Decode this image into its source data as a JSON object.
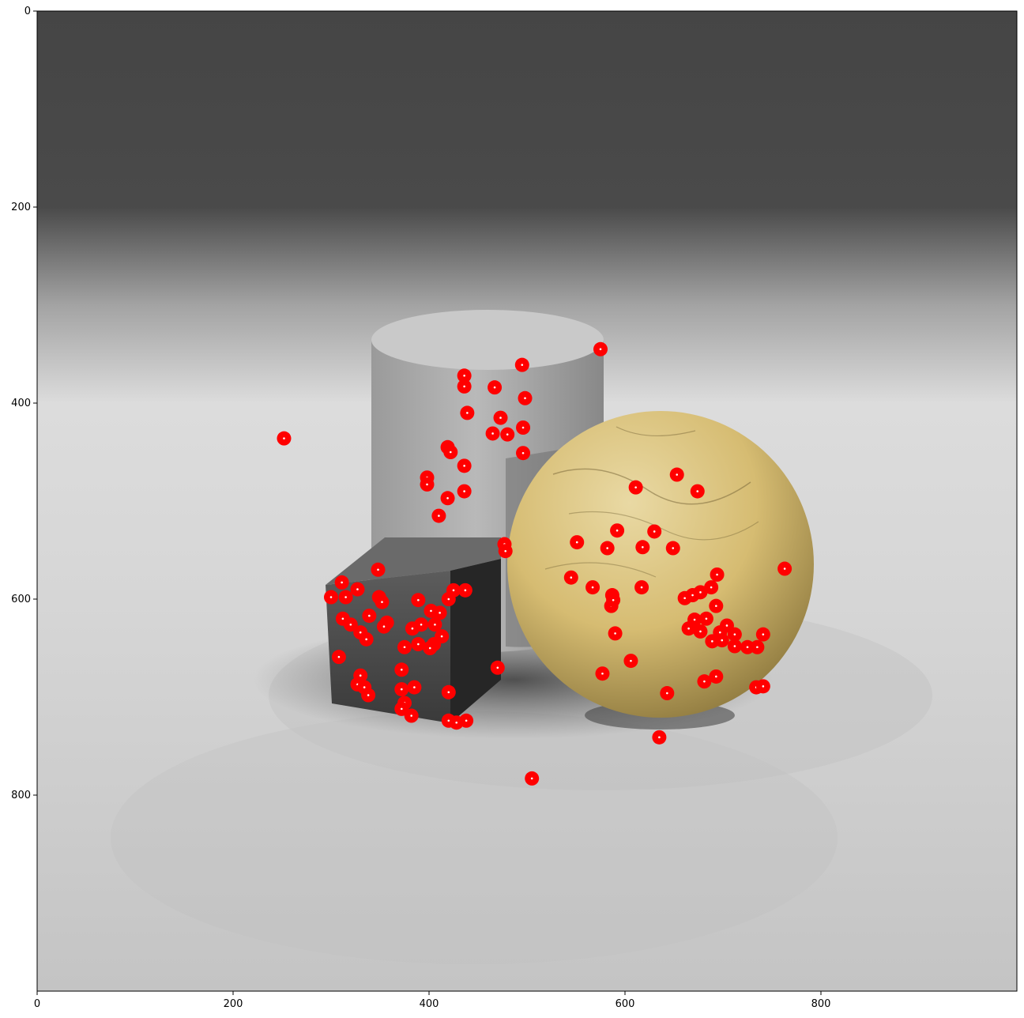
{
  "chart_data": {
    "type": "scatter",
    "title": "",
    "xlabel": "",
    "ylabel": "",
    "xlim": [
      0,
      1000
    ],
    "ylim": [
      1000,
      0
    ],
    "y_axis_inverted": true,
    "grid": false,
    "background": "rendered 3D scene: gray gradient backdrop with a stone cylinder, a dark granite cube and a yellow cracked sphere",
    "xticks": [
      0,
      200,
      400,
      600,
      800
    ],
    "yticks": [
      0,
      200,
      400,
      600,
      800
    ],
    "x_tick_labels": [
      "0",
      "200",
      "400",
      "600",
      "800"
    ],
    "y_tick_labels": [
      "0",
      "200",
      "400",
      "600",
      "800"
    ],
    "marker": {
      "shape": "circle",
      "color": "#ff0000",
      "center_color": "#ffffff"
    },
    "points": [
      [
        575,
        345
      ],
      [
        495,
        361
      ],
      [
        436,
        372
      ],
      [
        436,
        383
      ],
      [
        467,
        384
      ],
      [
        498,
        395
      ],
      [
        439,
        410
      ],
      [
        473,
        415
      ],
      [
        496,
        425
      ],
      [
        465,
        431
      ],
      [
        480,
        432
      ],
      [
        252,
        436
      ],
      [
        419,
        445
      ],
      [
        422,
        450
      ],
      [
        496,
        451
      ],
      [
        436,
        464
      ],
      [
        398,
        476
      ],
      [
        398,
        483
      ],
      [
        611,
        486
      ],
      [
        653,
        473
      ],
      [
        674,
        490
      ],
      [
        436,
        490
      ],
      [
        419,
        497
      ],
      [
        410,
        515
      ],
      [
        592,
        530
      ],
      [
        630,
        531
      ],
      [
        477,
        544
      ],
      [
        478,
        551
      ],
      [
        551,
        542
      ],
      [
        582,
        548
      ],
      [
        618,
        547
      ],
      [
        649,
        548
      ],
      [
        348,
        570
      ],
      [
        763,
        569
      ],
      [
        545,
        578
      ],
      [
        694,
        575
      ],
      [
        567,
        588
      ],
      [
        617,
        588
      ],
      [
        688,
        588
      ],
      [
        677,
        593
      ],
      [
        587,
        596
      ],
      [
        669,
        596
      ],
      [
        661,
        599
      ],
      [
        425,
        591
      ],
      [
        437,
        591
      ],
      [
        311,
        583
      ],
      [
        327,
        590
      ],
      [
        300,
        598
      ],
      [
        315,
        598
      ],
      [
        349,
        598
      ],
      [
        352,
        603
      ],
      [
        389,
        601
      ],
      [
        420,
        600
      ],
      [
        693,
        607
      ],
      [
        586,
        607
      ],
      [
        588,
        601
      ],
      [
        402,
        612
      ],
      [
        411,
        614
      ],
      [
        339,
        617
      ],
      [
        312,
        620
      ],
      [
        320,
        626
      ],
      [
        357,
        624
      ],
      [
        354,
        628
      ],
      [
        671,
        621
      ],
      [
        683,
        620
      ],
      [
        665,
        630
      ],
      [
        677,
        633
      ],
      [
        406,
        626
      ],
      [
        392,
        626
      ],
      [
        383,
        630
      ],
      [
        704,
        627
      ],
      [
        697,
        634
      ],
      [
        712,
        636
      ],
      [
        741,
        636
      ],
      [
        689,
        643
      ],
      [
        699,
        642
      ],
      [
        712,
        648
      ],
      [
        725,
        649
      ],
      [
        735,
        649
      ],
      [
        590,
        635
      ],
      [
        330,
        634
      ],
      [
        336,
        641
      ],
      [
        413,
        638
      ],
      [
        405,
        646
      ],
      [
        401,
        650
      ],
      [
        389,
        646
      ],
      [
        375,
        649
      ],
      [
        308,
        659
      ],
      [
        606,
        663
      ],
      [
        470,
        670
      ],
      [
        372,
        672
      ],
      [
        330,
        678
      ],
      [
        577,
        676
      ],
      [
        693,
        679
      ],
      [
        681,
        684
      ],
      [
        327,
        687
      ],
      [
        334,
        690
      ],
      [
        385,
        690
      ],
      [
        372,
        692
      ],
      [
        338,
        698
      ],
      [
        420,
        695
      ],
      [
        643,
        696
      ],
      [
        734,
        690
      ],
      [
        741,
        689
      ],
      [
        375,
        706
      ],
      [
        372,
        712
      ],
      [
        382,
        719
      ],
      [
        420,
        724
      ],
      [
        428,
        726
      ],
      [
        438,
        724
      ],
      [
        635,
        741
      ],
      [
        505,
        783
      ]
    ]
  }
}
